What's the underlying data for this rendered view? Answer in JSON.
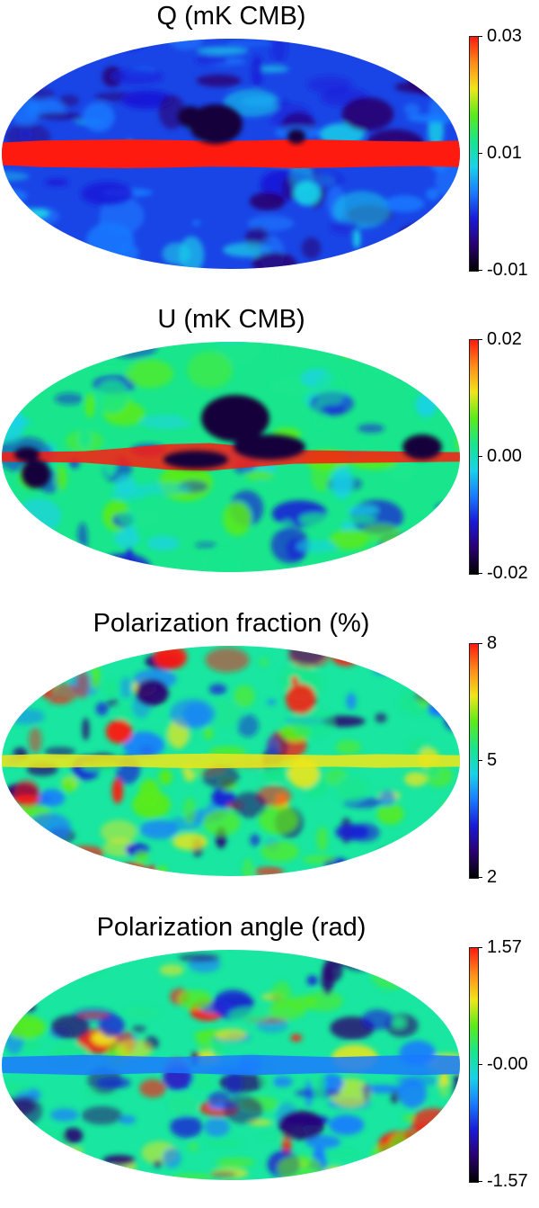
{
  "colormap": [
    "#000000",
    "#2a0070",
    "#1a1ad8",
    "#1a7aff",
    "#19d2e8",
    "#19e68c",
    "#5aeb1a",
    "#f0e619",
    "#ff8c19",
    "#ff1a0f"
  ],
  "chart_data": [
    {
      "type": "heatmap",
      "projection": "mollweide",
      "title": "Q (mK CMB)",
      "color_range": [
        -0.01,
        0.03
      ],
      "colorbar_ticks": [
        "0.03",
        "0.01",
        "-0.01"
      ],
      "background": "#1a45e6",
      "band_color": "#ff1a0f",
      "band_profile": [
        0.7,
        0.9,
        0.95,
        1.0,
        0.95,
        0.85,
        0.9,
        1.0,
        0.95,
        0.85,
        0.8,
        0.9
      ]
    },
    {
      "type": "heatmap",
      "projection": "mollweide",
      "title": "U (mK CMB)",
      "color_range": [
        -0.02,
        0.02
      ],
      "colorbar_ticks": [
        "0.02",
        "0.00",
        "-0.02"
      ],
      "background": "#19e68c",
      "band_color": "#ff1a0f",
      "band_profile": [
        0.1,
        0.15,
        0.2,
        0.5,
        0.85,
        0.95,
        0.6,
        0.3,
        0.25,
        0.2,
        0.15,
        0.1
      ]
    },
    {
      "type": "heatmap",
      "projection": "mollweide",
      "title": "Polarization fraction (%)",
      "color_range": [
        2,
        8
      ],
      "colorbar_ticks": [
        "8",
        "5",
        "2"
      ],
      "background": "#19e6a0",
      "band_color": "#f0e619",
      "band_profile": [
        0.2,
        0.3,
        0.25,
        0.2,
        0.3,
        0.35,
        0.3,
        0.25,
        0.2,
        0.3,
        0.25,
        0.2
      ]
    },
    {
      "type": "heatmap",
      "projection": "mollweide",
      "title": "Polarization angle (rad)",
      "color_range": [
        -1.57,
        1.57
      ],
      "colorbar_ticks": [
        "1.57",
        "-0.00",
        "-1.57"
      ],
      "background": "#19e6a0",
      "band_color": "#1a7aff",
      "band_profile": [
        0.4,
        0.5,
        0.6,
        0.5,
        0.4,
        0.5,
        0.6,
        0.5,
        0.4,
        0.5,
        0.6,
        0.5
      ]
    }
  ]
}
